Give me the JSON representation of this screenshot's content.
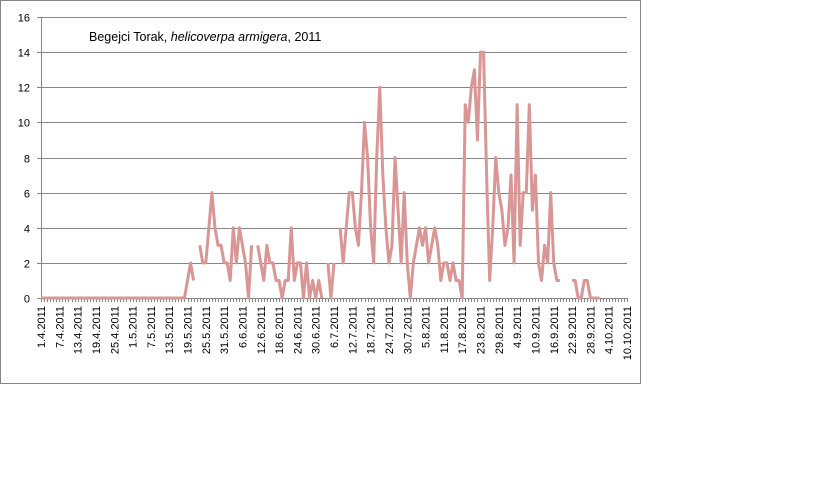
{
  "chart_data": {
    "type": "line",
    "title_parts": [
      {
        "text": "Begejci Torak, ",
        "italic": false
      },
      {
        "text": "helicoverpa armigera",
        "italic": true
      },
      {
        "text": ", 2011",
        "italic": false
      }
    ],
    "xlabel": "",
    "ylabel": "",
    "ylim": [
      0,
      16
    ],
    "yticks": [
      0,
      2,
      4,
      6,
      8,
      10,
      12,
      14,
      16
    ],
    "grid": true,
    "legend": "none",
    "x_start_date": "1.4.2011",
    "x_end_date": "10.10.2011",
    "x_tick_labels": [
      "1.4.2011",
      "7.4.2011",
      "13.4.2011",
      "19.4.2011",
      "25.4.2011",
      "1.5.2011",
      "7.5.2011",
      "13.5.2011",
      "19.5.2011",
      "25.5.2011",
      "31.5.2011",
      "6.6.2011",
      "12.6.2011",
      "18.6.2011",
      "24.6.2011",
      "30.6.2011",
      "6.7.2011",
      "12.7.2011",
      "18.7.2011",
      "24.7.2011",
      "30.7.2011",
      "5.8.2011",
      "11.8.2011",
      "17.8.2011",
      "23.8.2011",
      "29.8.2011",
      "4.9.2011",
      "10.9.2011",
      "16.9.2011",
      "22.9.2011",
      "28.9.2011",
      "4.10.2011",
      "10.10.2011"
    ],
    "series": [
      {
        "color": "#d99694",
        "points": [
          [
            "1.4.2011",
            0
          ],
          [
            "2.4.2011",
            0
          ],
          [
            "3.4.2011",
            0
          ],
          [
            "4.4.2011",
            0
          ],
          [
            "5.4.2011",
            0
          ],
          [
            "6.4.2011",
            0
          ],
          [
            "7.4.2011",
            0
          ],
          [
            "8.4.2011",
            0
          ],
          [
            "9.4.2011",
            0
          ],
          [
            "10.4.2011",
            0
          ],
          [
            "11.4.2011",
            0
          ],
          [
            "12.4.2011",
            0
          ],
          [
            "13.4.2011",
            0
          ],
          [
            "14.4.2011",
            0
          ],
          [
            "15.4.2011",
            0
          ],
          [
            "16.4.2011",
            0
          ],
          [
            "17.4.2011",
            0
          ],
          [
            "18.4.2011",
            0
          ],
          [
            "19.4.2011",
            0
          ],
          [
            "20.4.2011",
            0
          ],
          [
            "21.4.2011",
            0
          ],
          [
            "22.4.2011",
            0
          ],
          [
            "23.4.2011",
            0
          ],
          [
            "24.4.2011",
            0
          ],
          [
            "25.4.2011",
            0
          ],
          [
            "26.4.2011",
            0
          ],
          [
            "27.4.2011",
            0
          ],
          [
            "28.4.2011",
            0
          ],
          [
            "29.4.2011",
            0
          ],
          [
            "30.4.2011",
            0
          ],
          [
            "1.5.2011",
            0
          ],
          [
            "2.5.2011",
            0
          ],
          [
            "3.5.2011",
            0
          ],
          [
            "4.5.2011",
            0
          ],
          [
            "5.5.2011",
            0
          ],
          [
            "6.5.2011",
            0
          ],
          [
            "7.5.2011",
            0
          ],
          [
            "8.5.2011",
            0
          ],
          [
            "9.5.2011",
            0
          ],
          [
            "10.5.2011",
            0
          ],
          [
            "11.5.2011",
            0
          ],
          [
            "12.5.2011",
            0
          ],
          [
            "13.5.2011",
            0
          ],
          [
            "14.5.2011",
            0
          ],
          [
            "15.5.2011",
            0
          ],
          [
            "16.5.2011",
            0
          ],
          [
            "17.5.2011",
            0
          ],
          [
            "18.5.2011",
            0
          ],
          [
            "19.5.2011",
            1
          ],
          [
            "20.5.2011",
            2
          ],
          [
            "21.5.2011",
            1
          ],
          [
            "22.5.2011",
            null
          ],
          [
            "23.5.2011",
            3
          ],
          [
            "24.5.2011",
            2
          ],
          [
            "25.5.2011",
            2
          ],
          [
            "26.5.2011",
            4
          ],
          [
            "27.5.2011",
            6
          ],
          [
            "28.5.2011",
            4
          ],
          [
            "29.5.2011",
            3
          ],
          [
            "30.5.2011",
            3
          ],
          [
            "31.5.2011",
            2
          ],
          [
            "1.6.2011",
            2
          ],
          [
            "2.6.2011",
            1
          ],
          [
            "3.6.2011",
            4
          ],
          [
            "4.6.2011",
            2
          ],
          [
            "5.6.2011",
            4
          ],
          [
            "6.6.2011",
            3
          ],
          [
            "7.6.2011",
            2
          ],
          [
            "8.6.2011",
            0
          ],
          [
            "9.6.2011",
            3
          ],
          [
            "10.6.2011",
            null
          ],
          [
            "11.6.2011",
            3
          ],
          [
            "12.6.2011",
            2
          ],
          [
            "13.6.2011",
            1
          ],
          [
            "14.6.2011",
            3
          ],
          [
            "15.6.2011",
            2
          ],
          [
            "16.6.2011",
            2
          ],
          [
            "17.6.2011",
            1
          ],
          [
            "18.6.2011",
            1
          ],
          [
            "19.6.2011",
            0
          ],
          [
            "20.6.2011",
            1
          ],
          [
            "21.6.2011",
            1
          ],
          [
            "22.6.2011",
            4
          ],
          [
            "23.6.2011",
            1
          ],
          [
            "24.6.2011",
            2
          ],
          [
            "25.6.2011",
            2
          ],
          [
            "26.6.2011",
            0
          ],
          [
            "27.6.2011",
            2
          ],
          [
            "28.6.2011",
            0
          ],
          [
            "29.6.2011",
            1
          ],
          [
            "30.6.2011",
            0
          ],
          [
            "1.7.2011",
            1
          ],
          [
            "2.7.2011",
            0
          ],
          [
            "3.7.2011",
            null
          ],
          [
            "4.7.2011",
            2
          ],
          [
            "5.7.2011",
            0
          ],
          [
            "6.7.2011",
            2
          ],
          [
            "7.7.2011",
            null
          ],
          [
            "8.7.2011",
            4
          ],
          [
            "9.7.2011",
            2
          ],
          [
            "10.7.2011",
            4
          ],
          [
            "11.7.2011",
            6
          ],
          [
            "12.7.2011",
            6
          ],
          [
            "13.7.2011",
            4
          ],
          [
            "14.7.2011",
            3
          ],
          [
            "15.7.2011",
            6
          ],
          [
            "16.7.2011",
            10
          ],
          [
            "17.7.2011",
            8
          ],
          [
            "18.7.2011",
            4
          ],
          [
            "19.7.2011",
            2
          ],
          [
            "20.7.2011",
            8
          ],
          [
            "21.7.2011",
            12
          ],
          [
            "22.7.2011",
            7
          ],
          [
            "23.7.2011",
            4
          ],
          [
            "24.7.2011",
            2
          ],
          [
            "25.7.2011",
            3
          ],
          [
            "26.7.2011",
            8
          ],
          [
            "27.7.2011",
            5
          ],
          [
            "28.7.2011",
            2
          ],
          [
            "29.7.2011",
            6
          ],
          [
            "30.7.2011",
            2
          ],
          [
            "31.7.2011",
            0
          ],
          [
            "1.8.2011",
            2
          ],
          [
            "2.8.2011",
            3
          ],
          [
            "3.8.2011",
            4
          ],
          [
            "4.8.2011",
            3
          ],
          [
            "5.8.2011",
            4
          ],
          [
            "6.8.2011",
            2
          ],
          [
            "7.8.2011",
            3
          ],
          [
            "8.8.2011",
            4
          ],
          [
            "9.8.2011",
            3
          ],
          [
            "10.8.2011",
            1
          ],
          [
            "11.8.2011",
            2
          ],
          [
            "12.8.2011",
            2
          ],
          [
            "13.8.2011",
            1
          ],
          [
            "14.8.2011",
            2
          ],
          [
            "15.8.2011",
            1
          ],
          [
            "16.8.2011",
            1
          ],
          [
            "17.8.2011",
            0
          ],
          [
            "18.8.2011",
            11
          ],
          [
            "19.8.2011",
            10
          ],
          [
            "20.8.2011",
            12
          ],
          [
            "21.8.2011",
            13
          ],
          [
            "22.8.2011",
            9
          ],
          [
            "23.8.2011",
            14
          ],
          [
            "24.8.2011",
            14
          ],
          [
            "25.8.2011",
            7
          ],
          [
            "26.8.2011",
            1
          ],
          [
            "27.8.2011",
            4
          ],
          [
            "28.8.2011",
            8
          ],
          [
            "29.8.2011",
            6
          ],
          [
            "30.8.2011",
            5
          ],
          [
            "31.8.2011",
            3
          ],
          [
            "1.9.2011",
            4
          ],
          [
            "2.9.2011",
            7
          ],
          [
            "3.9.2011",
            2
          ],
          [
            "4.9.2011",
            11
          ],
          [
            "5.9.2011",
            3
          ],
          [
            "6.9.2011",
            6
          ],
          [
            "7.9.2011",
            6
          ],
          [
            "8.9.2011",
            11
          ],
          [
            "9.9.2011",
            5
          ],
          [
            "10.9.2011",
            7
          ],
          [
            "11.9.2011",
            2
          ],
          [
            "12.9.2011",
            1
          ],
          [
            "13.9.2011",
            3
          ],
          [
            "14.9.2011",
            2
          ],
          [
            "15.9.2011",
            6
          ],
          [
            "16.9.2011",
            2
          ],
          [
            "17.9.2011",
            1
          ],
          [
            "18.9.2011",
            1
          ],
          [
            "19.9.2011",
            null
          ],
          [
            "20.9.2011",
            null
          ],
          [
            "21.9.2011",
            null
          ],
          [
            "22.9.2011",
            1
          ],
          [
            "23.9.2011",
            1
          ],
          [
            "24.9.2011",
            0
          ],
          [
            "25.9.2011",
            0
          ],
          [
            "26.9.2011",
            1
          ],
          [
            "27.9.2011",
            1
          ],
          [
            "28.9.2011",
            0
          ],
          [
            "29.9.2011",
            0
          ],
          [
            "30.9.2011",
            0
          ],
          [
            "1.10.2011",
            0
          ]
        ]
      }
    ]
  }
}
